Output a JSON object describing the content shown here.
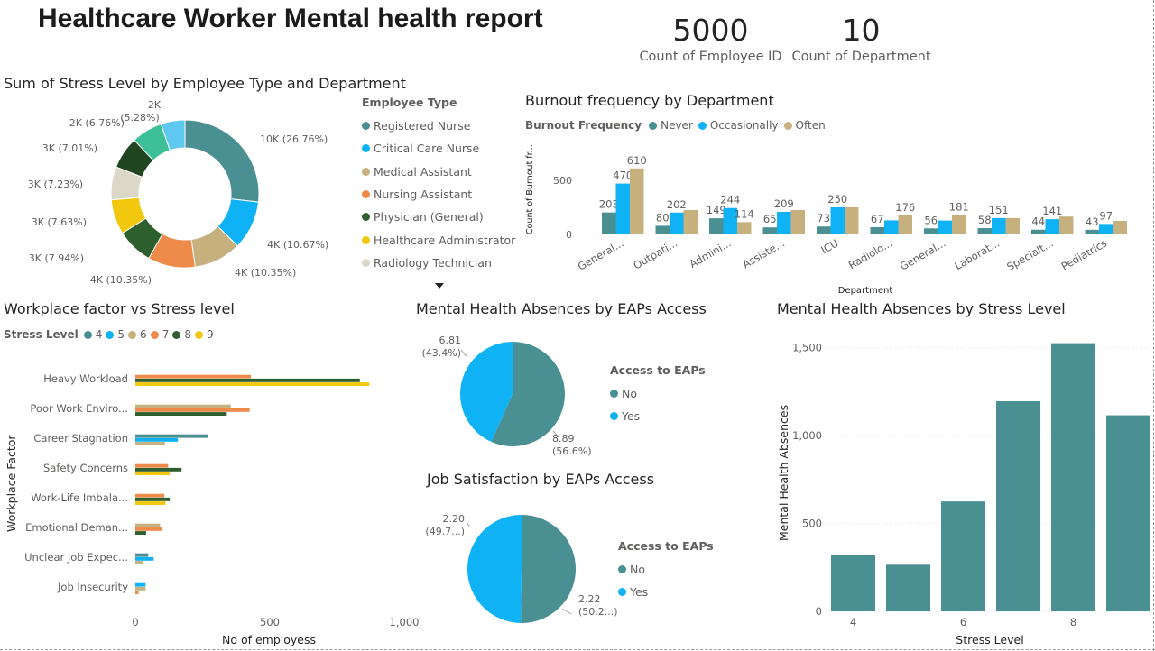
{
  "report_title": "Healthcare Worker Mental health report",
  "kpis": [
    {
      "value": "5000",
      "label": "Count of Employee ID"
    },
    {
      "value": "10",
      "label": "Count of Department"
    }
  ],
  "colors": {
    "teal": "#4a8f92",
    "blue": "#0fb2f5",
    "tan": "#c5b07e",
    "orange": "#ef8b4a",
    "darkgreen": "#2e5f2e",
    "yellow": "#f2c80f",
    "beige": "#dcd8c8",
    "mint": "#3dbf98",
    "sky": "#5fc8f0"
  },
  "donut": {
    "title": "Sum of Stress Level by Employee Type and Department",
    "legend_title": "Employee Type",
    "legend_items": [
      "Registered Nurse",
      "Critical Care Nurse",
      "Medical Assistant",
      "Nursing Assistant",
      "Physician (General)",
      "Healthcare Administrator",
      "Radiology Technician"
    ],
    "more_icon": "chevron-down-icon"
  },
  "burnout": {
    "title": "Burnout frequency by Department",
    "legend_title": "Burnout Frequency",
    "ylabel": "Count of Burnout fr...",
    "xlabel": "Department"
  },
  "workplace": {
    "title": "Workplace factor vs Stress level",
    "legend_title": "Stress Level",
    "ylabel": "Workplace Factor",
    "xlabel": "No of employess"
  },
  "eap_abs": {
    "title": "Mental Health Absences by EAPs Access",
    "legend_title": "Access to EAPs"
  },
  "eap_job": {
    "title": "Job Satisfaction by EAPs Access",
    "legend_title": "Access to EAPs"
  },
  "stress_abs": {
    "title": "Mental Health Absences by Stress Level",
    "ylabel": "Mental Health Absences",
    "xlabel": "Stress Level"
  },
  "chart_data": [
    {
      "type": "pie",
      "title": "Sum of Stress Level by Employee Type and Department",
      "slices": [
        {
          "label": "10K (26.76%)",
          "value": 26.76,
          "color": "#4a8f92"
        },
        {
          "label": "4K (10.67%)",
          "value": 10.67,
          "color": "#0fb2f5"
        },
        {
          "label": "4K (10.35%)",
          "value": 10.35,
          "color": "#c5b07e"
        },
        {
          "label": "4K (10.35%)",
          "value": 10.35,
          "color": "#ef8b4a"
        },
        {
          "label": "3K (7.94%)",
          "value": 7.94,
          "color": "#2e5f2e"
        },
        {
          "label": "3K (7.63%)",
          "value": 7.63,
          "color": "#f2c80f"
        },
        {
          "label": "3K (7.23%)",
          "value": 7.23,
          "color": "#dcd8c8"
        },
        {
          "label": "3K (7.01%)",
          "value": 7.01,
          "color": "#214421"
        },
        {
          "label": "2K (6.76%)",
          "value": 6.76,
          "color": "#3dbf98"
        },
        {
          "label": "2K (5.28%)",
          "value": 5.28,
          "color": "#5fc8f0"
        }
      ]
    },
    {
      "type": "bar",
      "title": "Burnout frequency by Department",
      "categories": [
        "General...",
        "Outpati...",
        "Admini...",
        "Assiste...",
        "ICU",
        "Radiolo...",
        "General...",
        "Laborat...",
        "Specialt...",
        "Pediatrics"
      ],
      "series": [
        {
          "name": "Never",
          "values": [
            203,
            80,
            149,
            65,
            73,
            67,
            56,
            58,
            44,
            43
          ],
          "color": "#4a8f92"
        },
        {
          "name": "Occasionally",
          "values": [
            470,
            202,
            244,
            209,
            250,
            130,
            128,
            151,
            141,
            97
          ],
          "color": "#0fb2f5"
        },
        {
          "name": "Often",
          "values": [
            610,
            225,
            114,
            225,
            250,
            176,
            181,
            151,
            165,
            125
          ],
          "color": "#c5b07e"
        }
      ],
      "data_labels": [
        [
          "203",
          "470",
          "610"
        ],
        [
          "80",
          "202",
          ""
        ],
        [
          "149",
          "244",
          "114"
        ],
        [
          "65",
          "209",
          ""
        ],
        [
          "73",
          "250",
          ""
        ],
        [
          "67",
          "",
          "176"
        ],
        [
          "56",
          "",
          "181"
        ],
        [
          "58",
          "151",
          ""
        ],
        [
          "44",
          "141",
          ""
        ],
        [
          "43",
          "97",
          ""
        ]
      ],
      "yticks": [
        "0",
        "500"
      ],
      "ylim": [
        0,
        700
      ],
      "xlabel": "Department",
      "ylabel": "Count of Burnout fr..."
    },
    {
      "type": "bar",
      "orientation": "horizontal",
      "title": "Workplace factor vs Stress level",
      "categories": [
        "Heavy Workload",
        "Poor Work Enviro...",
        "Career Stagnation",
        "Safety Concerns",
        "Work-Life Imbala...",
        "Emotional Deman...",
        "Unclear Job Expec...",
        "Job Insecurity"
      ],
      "series": [
        {
          "name": "4",
          "values": [
            0,
            0,
            272,
            0,
            0,
            0,
            48,
            0
          ],
          "color": "#4a8f92"
        },
        {
          "name": "5",
          "values": [
            0,
            0,
            158,
            0,
            0,
            0,
            68,
            38
          ],
          "color": "#0fb2f5"
        },
        {
          "name": "6",
          "values": [
            0,
            355,
            110,
            0,
            0,
            92,
            30,
            38
          ],
          "color": "#c5b07e"
        },
        {
          "name": "7",
          "values": [
            430,
            425,
            0,
            122,
            108,
            98,
            0,
            12
          ],
          "color": "#ef8b4a"
        },
        {
          "name": "8",
          "values": [
            835,
            340,
            0,
            172,
            128,
            40,
            0,
            0
          ],
          "color": "#2e5f2e"
        },
        {
          "name": "9",
          "values": [
            870,
            0,
            0,
            128,
            112,
            0,
            0,
            0
          ],
          "color": "#f2c80f"
        }
      ],
      "xticks": [
        "0",
        "500",
        "1,000"
      ],
      "xlim": [
        0,
        1000
      ],
      "xlabel": "No of employess",
      "ylabel": "Workplace Factor"
    },
    {
      "type": "pie",
      "title": "Mental Health Absences by EAPs Access",
      "slices": [
        {
          "name": "No",
          "value": 8.89,
          "label_value": "8.89",
          "label_pct": "(56.6%)",
          "color": "#4a8f92"
        },
        {
          "name": "Yes",
          "value": 6.81,
          "label_value": "6.81",
          "label_pct": "(43.4%)",
          "color": "#0fb2f5"
        }
      ]
    },
    {
      "type": "pie",
      "title": "Job Satisfaction by EAPs Access",
      "slices": [
        {
          "name": "No",
          "value": 2.22,
          "label_value": "2.22",
          "label_pct": "(50.2...)",
          "color": "#4a8f92"
        },
        {
          "name": "Yes",
          "value": 2.2,
          "label_value": "2.20",
          "label_pct": "(49.7...)",
          "color": "#0fb2f5"
        }
      ]
    },
    {
      "type": "bar",
      "title": "Mental Health Absences by Stress Level",
      "categories": [
        "4",
        "5",
        "6",
        "7",
        "8",
        "9"
      ],
      "values": [
        320,
        265,
        625,
        1195,
        1525,
        1115
      ],
      "xticks": [
        "4",
        "6",
        "8"
      ],
      "yticks": [
        "0",
        "500",
        "1,000",
        "1,500"
      ],
      "ylim": [
        0,
        1600
      ],
      "xlabel": "Stress Level",
      "ylabel": "Mental Health Absences",
      "color": "#4a8f92"
    }
  ]
}
